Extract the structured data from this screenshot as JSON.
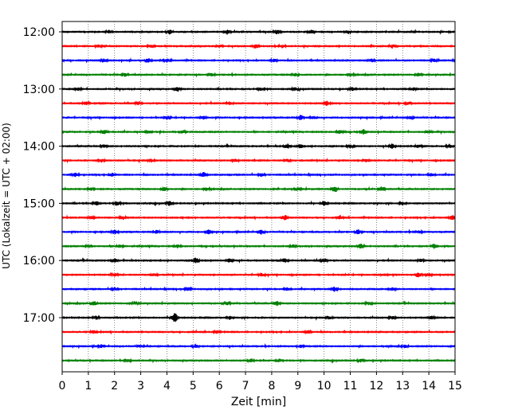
{
  "chart_data": {
    "type": "line",
    "title": "",
    "xlabel": "Zeit  [min]",
    "ylabel": "UTC (Lokalzeit = UTC + 02:00)",
    "xlim": [
      0,
      15
    ],
    "x_ticks": [
      0,
      1,
      2,
      3,
      4,
      5,
      6,
      7,
      8,
      9,
      10,
      11,
      12,
      13,
      14,
      15
    ],
    "y_tick_labels": [
      "12:00",
      "13:00",
      "14:00",
      "15:00",
      "16:00",
      "17:00"
    ],
    "grid": "vertical dotted lines at each minute",
    "legend": "none",
    "trace_colors": [
      "#000000",
      "#ff0000",
      "#0000ff",
      "#008000"
    ],
    "series": [
      {
        "start": "12:00",
        "color": "#000000",
        "events": [
          [
            1.8,
            2
          ],
          [
            4.1,
            3
          ],
          [
            6.3,
            3
          ],
          [
            8.2,
            3
          ],
          [
            9.5,
            3
          ],
          [
            10.9,
            2
          ]
        ]
      },
      {
        "start": "12:15",
        "color": "#ff0000",
        "events": [
          [
            1.4,
            2
          ],
          [
            3.4,
            2
          ],
          [
            6.0,
            2
          ],
          [
            7.4,
            3
          ],
          [
            8.4,
            2
          ],
          [
            12.6,
            2
          ]
        ]
      },
      {
        "start": "12:30",
        "color": "#0000ff",
        "events": [
          [
            1.6,
            2
          ],
          [
            3.3,
            3
          ],
          [
            4.0,
            2
          ],
          [
            8.1,
            2
          ],
          [
            11.8,
            2
          ],
          [
            14.2,
            2
          ]
        ]
      },
      {
        "start": "12:45",
        "color": "#008000",
        "events": [
          [
            2.4,
            2
          ],
          [
            5.7,
            2
          ],
          [
            8.9,
            2
          ],
          [
            11.0,
            2
          ],
          [
            13.6,
            2
          ]
        ]
      },
      {
        "start": "13:00",
        "color": "#000000",
        "events": [
          [
            0.6,
            2
          ],
          [
            4.4,
            3
          ],
          [
            7.6,
            2
          ],
          [
            8.9,
            2
          ],
          [
            11.1,
            2
          ],
          [
            13.4,
            2
          ]
        ]
      },
      {
        "start": "13:15",
        "color": "#ff0000",
        "events": [
          [
            0.9,
            2
          ],
          [
            2.9,
            2
          ],
          [
            6.4,
            2
          ],
          [
            10.1,
            3
          ],
          [
            13.2,
            2
          ]
        ]
      },
      {
        "start": "13:30",
        "color": "#0000ff",
        "events": [
          [
            4.0,
            2
          ],
          [
            5.4,
            2
          ],
          [
            9.1,
            3
          ],
          [
            9.6,
            2
          ],
          [
            13.3,
            2
          ]
        ]
      },
      {
        "start": "13:45",
        "color": "#008000",
        "events": [
          [
            1.6,
            3
          ],
          [
            3.3,
            2
          ],
          [
            4.6,
            2
          ],
          [
            10.6,
            3
          ],
          [
            11.5,
            3
          ],
          [
            14.0,
            2
          ]
        ]
      },
      {
        "start": "14:00",
        "color": "#000000",
        "events": [
          [
            1.6,
            2
          ],
          [
            8.6,
            3
          ],
          [
            9.1,
            3
          ],
          [
            11.0,
            2
          ],
          [
            12.6,
            3
          ],
          [
            13.6,
            2
          ],
          [
            14.8,
            2
          ]
        ]
      },
      {
        "start": "14:15",
        "color": "#ff0000",
        "events": [
          [
            1.5,
            2
          ],
          [
            3.4,
            2
          ],
          [
            6.6,
            2
          ],
          [
            8.6,
            2
          ],
          [
            11.6,
            2
          ]
        ]
      },
      {
        "start": "14:30",
        "color": "#0000ff",
        "events": [
          [
            0.5,
            3
          ],
          [
            1.9,
            2
          ],
          [
            5.4,
            3
          ],
          [
            7.6,
            2
          ],
          [
            14.1,
            2
          ]
        ]
      },
      {
        "start": "14:45",
        "color": "#008000",
        "events": [
          [
            1.1,
            2
          ],
          [
            3.9,
            3
          ],
          [
            5.5,
            2
          ],
          [
            9.0,
            2
          ],
          [
            10.4,
            4
          ],
          [
            12.2,
            3
          ]
        ]
      },
      {
        "start": "15:00",
        "color": "#000000",
        "events": [
          [
            1.3,
            3
          ],
          [
            2.1,
            3
          ],
          [
            4.1,
            3
          ],
          [
            10.0,
            3
          ],
          [
            13.0,
            2
          ]
        ]
      },
      {
        "start": "15:15",
        "color": "#ff0000",
        "events": [
          [
            1.1,
            2
          ],
          [
            2.3,
            2
          ],
          [
            8.5,
            3
          ],
          [
            10.6,
            2
          ],
          [
            14.9,
            3
          ]
        ]
      },
      {
        "start": "15:30",
        "color": "#0000ff",
        "events": [
          [
            2.0,
            3
          ],
          [
            3.6,
            2
          ],
          [
            5.6,
            3
          ],
          [
            7.6,
            3
          ],
          [
            11.3,
            3
          ],
          [
            13.6,
            2
          ]
        ]
      },
      {
        "start": "15:45",
        "color": "#008000",
        "events": [
          [
            1.0,
            2
          ],
          [
            2.2,
            2
          ],
          [
            4.4,
            2
          ],
          [
            8.8,
            2
          ],
          [
            11.4,
            3
          ],
          [
            14.2,
            3
          ]
        ]
      },
      {
        "start": "16:00",
        "color": "#000000",
        "events": [
          [
            2.0,
            3
          ],
          [
            5.1,
            4
          ],
          [
            6.4,
            3
          ],
          [
            8.5,
            3
          ],
          [
            10.0,
            3
          ],
          [
            13.7,
            2
          ]
        ]
      },
      {
        "start": "16:15",
        "color": "#ff0000",
        "events": [
          [
            2.0,
            2
          ],
          [
            3.5,
            2
          ],
          [
            7.6,
            2
          ],
          [
            12.3,
            2
          ],
          [
            13.6,
            3
          ],
          [
            14.0,
            2
          ]
        ]
      },
      {
        "start": "16:30",
        "color": "#0000ff",
        "events": [
          [
            2.0,
            2
          ],
          [
            4.8,
            2
          ],
          [
            8.6,
            2
          ],
          [
            10.4,
            3
          ],
          [
            12.6,
            2
          ]
        ]
      },
      {
        "start": "16:45",
        "color": "#008000",
        "events": [
          [
            1.2,
            3
          ],
          [
            2.8,
            2
          ],
          [
            6.3,
            2
          ],
          [
            8.2,
            3
          ],
          [
            11.7,
            2
          ]
        ]
      },
      {
        "start": "17:00",
        "color": "#000000",
        "events": [
          [
            1.3,
            2
          ],
          [
            4.3,
            6
          ],
          [
            6.4,
            2
          ],
          [
            10.2,
            2
          ],
          [
            12.6,
            2
          ],
          [
            14.1,
            2
          ]
        ]
      },
      {
        "start": "17:15",
        "color": "#ff0000",
        "events": [
          [
            1.2,
            2
          ],
          [
            5.9,
            2
          ],
          [
            9.4,
            2
          ]
        ]
      },
      {
        "start": "17:30",
        "color": "#0000ff",
        "events": [
          [
            1.5,
            2
          ],
          [
            3.0,
            2
          ],
          [
            5.1,
            2
          ],
          [
            9.1,
            2
          ],
          [
            13.1,
            2
          ]
        ]
      },
      {
        "start": "17:45",
        "color": "#008000",
        "events": [
          [
            2.5,
            2
          ],
          [
            7.2,
            2
          ],
          [
            8.3,
            2
          ],
          [
            11.4,
            2
          ]
        ]
      }
    ]
  }
}
